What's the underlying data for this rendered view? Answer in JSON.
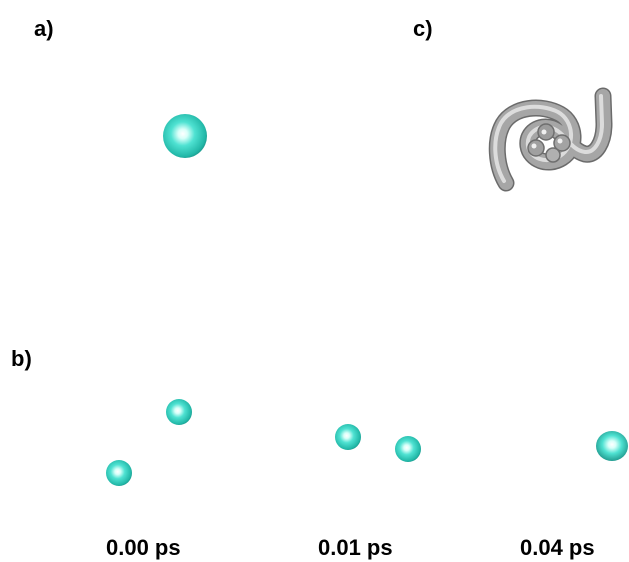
{
  "panels": {
    "a": {
      "label": "a)"
    },
    "b": {
      "label": "b)"
    },
    "c": {
      "label": "c)"
    }
  },
  "time_labels": [
    "0.00 ps",
    "0.01 ps",
    "0.04 ps"
  ],
  "colors": {
    "sphere": "#2fd4c4",
    "sphere_highlight": "#e8fffc",
    "tube": "#9a9a9a",
    "tube_highlight": "#e6e6e6",
    "text": "#000000",
    "background": "#ffffff"
  }
}
